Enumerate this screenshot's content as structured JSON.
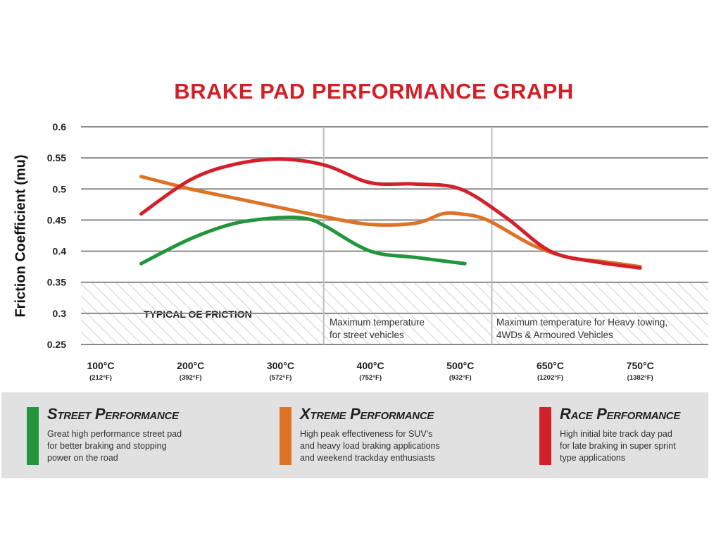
{
  "chart_data": {
    "type": "line",
    "title": "BRAKE PAD PERFORMANCE GRAPH",
    "ylabel": "Friction Coefficient (mu)",
    "xlabel": "",
    "ylim": [
      0.25,
      0.6
    ],
    "yticks": [
      "0.6",
      "0.55",
      "0.5",
      "0.45",
      "0.4",
      "0.35",
      "0.3",
      "0.25"
    ],
    "categories": [
      {
        "c": "100°C",
        "f": "(212°F)"
      },
      {
        "c": "200°C",
        "f": "(392°F)"
      },
      {
        "c": "300°C",
        "f": "(572°F)"
      },
      {
        "c": "400°C",
        "f": "(752°F)"
      },
      {
        "c": "500°C",
        "f": "(932°F)"
      },
      {
        "c": "650°C",
        "f": "(1202°F)"
      },
      {
        "c": "750°C",
        "f": "(1382°F)"
      }
    ],
    "grid": true,
    "hatched_band": {
      "label": "TYPICAL OE FRICTION",
      "y_from": 0.25,
      "y_to": 0.35
    },
    "vertical_markers": [
      {
        "position_index": 2.48,
        "label_lines": [
          "Maximum temperature",
          "for street vehicles"
        ]
      },
      {
        "position_index": 4.35,
        "label_lines": [
          "Maximum temperature for Heavy towing,",
          "4WDs & Armoured Vehicles"
        ]
      }
    ],
    "series": [
      {
        "name": "Street Performance",
        "color": "#22963c",
        "points": [
          [
            0.45,
            0.38
          ],
          [
            1,
            0.42
          ],
          [
            1.5,
            0.445
          ],
          [
            2,
            0.454
          ],
          [
            2.3,
            0.452
          ],
          [
            2.5,
            0.44
          ],
          [
            3,
            0.4
          ],
          [
            3.5,
            0.39
          ],
          [
            4.05,
            0.38
          ]
        ]
      },
      {
        "name": "Xtreme Performance",
        "color": "#dd7327",
        "points": [
          [
            0.45,
            0.52
          ],
          [
            1,
            0.5
          ],
          [
            1.5,
            0.485
          ],
          [
            2,
            0.47
          ],
          [
            2.5,
            0.455
          ],
          [
            3,
            0.443
          ],
          [
            3.5,
            0.445
          ],
          [
            3.8,
            0.46
          ],
          [
            4,
            0.46
          ],
          [
            4.3,
            0.45
          ],
          [
            4.8,
            0.41
          ],
          [
            5.2,
            0.39
          ],
          [
            5.6,
            0.383
          ],
          [
            6,
            0.375
          ]
        ]
      },
      {
        "name": "Race Performance",
        "color": "#d3202b",
        "points": [
          [
            0.45,
            0.46
          ],
          [
            1,
            0.515
          ],
          [
            1.5,
            0.54
          ],
          [
            2,
            0.548
          ],
          [
            2.5,
            0.538
          ],
          [
            3,
            0.51
          ],
          [
            3.5,
            0.508
          ],
          [
            4,
            0.5
          ],
          [
            4.5,
            0.455
          ],
          [
            5,
            0.4
          ],
          [
            5.5,
            0.383
          ],
          [
            6,
            0.373
          ]
        ]
      }
    ]
  },
  "legend": [
    {
      "name": "Street Performance",
      "color": "#22963c",
      "desc_lines": [
        "Great high performance street pad",
        "for better braking and stopping",
        "power on the road"
      ]
    },
    {
      "name": "Xtreme Performance",
      "color": "#dd7327",
      "desc_lines": [
        "High peak effectiveness for SUV's",
        "and heavy load braking applications",
        "and weekend trackday enthusiasts"
      ]
    },
    {
      "name": "Race Performance",
      "color": "#d3202b",
      "desc_lines": [
        "High initial bite track day pad",
        "for late braking in super sprint",
        "type applications"
      ]
    }
  ]
}
